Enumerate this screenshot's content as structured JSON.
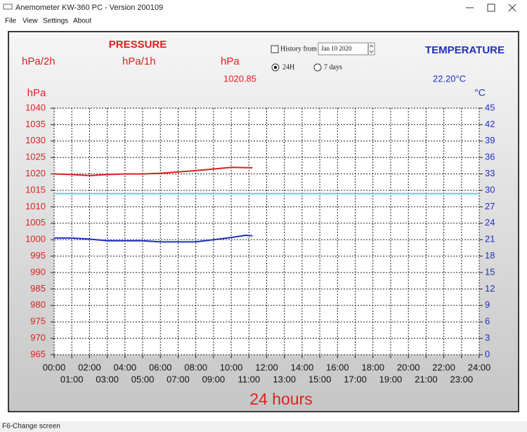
{
  "window": {
    "title": "Anemometer KW-360 PC - Version 200109"
  },
  "menu": [
    "File",
    "View",
    "Settings",
    "About"
  ],
  "readouts": {
    "pressure_title": "PRESSURE",
    "rate_2h_label": "hPa/2h",
    "rate_1h_label": "hPa/1h",
    "pressure_unit": "hPa",
    "pressure_value": 1020.85,
    "temperature_title": "TEMPERATURE",
    "temperature_value": "22.20°C"
  },
  "controls": {
    "history_label": "History from",
    "history_date": "Jan 10 2020",
    "range_24h": "24H",
    "range_7d": "7 days"
  },
  "chart_data": {
    "type": "line",
    "x_label": "24 hours",
    "y_label": "hPa",
    "y2_label": "°C",
    "grid": true,
    "xlim": [
      0,
      24
    ],
    "xticks": [
      {
        "value": 0,
        "label": "00:00"
      },
      {
        "value": 1,
        "label": "01:00"
      },
      {
        "value": 2,
        "label": "02:00"
      },
      {
        "value": 3,
        "label": "03:00"
      },
      {
        "value": 4,
        "label": "04:00"
      },
      {
        "value": 5,
        "label": "05:00"
      },
      {
        "value": 6,
        "label": "06:00"
      },
      {
        "value": 7,
        "label": "07:00"
      },
      {
        "value": 8,
        "label": "08:00"
      },
      {
        "value": 9,
        "label": "09:00"
      },
      {
        "value": 10,
        "label": "10:00"
      },
      {
        "value": 11,
        "label": "11:00"
      },
      {
        "value": 12,
        "label": "12:00"
      },
      {
        "value": 13,
        "label": "13:00"
      },
      {
        "value": 14,
        "label": "14:00"
      },
      {
        "value": 15,
        "label": "15:00"
      },
      {
        "value": 16,
        "label": "16:00"
      },
      {
        "value": 17,
        "label": "17:00"
      },
      {
        "value": 18,
        "label": "18:00"
      },
      {
        "value": 19,
        "label": "19:00"
      },
      {
        "value": 20,
        "label": "20:00"
      },
      {
        "value": 21,
        "label": "21:00"
      },
      {
        "value": 22,
        "label": "22:00"
      },
      {
        "value": 23,
        "label": "23:00"
      },
      {
        "value": 24,
        "label": "24:00"
      }
    ],
    "ylim": [
      965,
      1040
    ],
    "yticks": [
      965,
      970,
      975,
      980,
      985,
      990,
      995,
      1000,
      1005,
      1010,
      1015,
      1020,
      1025,
      1030,
      1035,
      1040
    ],
    "y2lim": [
      0,
      45
    ],
    "y2ticks": [
      0,
      3,
      6,
      9,
      12,
      15,
      18,
      21,
      24,
      27,
      30,
      33,
      36,
      39,
      42,
      45
    ],
    "y_color": "#e02020",
    "y2_color": "#2030c0",
    "series": [
      {
        "color": "#e02020",
        "x": [
          0,
          1,
          2,
          3,
          4,
          5,
          6,
          7,
          8,
          9,
          10,
          11,
          11.2
        ],
        "values": [
          1020,
          1019.8,
          1019.5,
          1019.8,
          1020,
          1020,
          1020.2,
          1020.6,
          1021,
          1021.5,
          1022,
          1021.9,
          1021.9
        ]
      },
      {
        "color": "#2030c0",
        "axis": "y2",
        "x": [
          0,
          1,
          2,
          3,
          4,
          5,
          6,
          7,
          8,
          9,
          10,
          10.8,
          11.2
        ],
        "values": [
          21.3,
          21.3,
          21.1,
          20.8,
          20.8,
          20.8,
          20.6,
          20.6,
          20.6,
          21,
          21.4,
          21.8,
          21.7
        ]
      },
      {
        "color": "#5fd0d0",
        "x": [
          0,
          24
        ],
        "values": [
          1014,
          1014
        ]
      }
    ]
  },
  "status_bar": "F6-Change screen"
}
